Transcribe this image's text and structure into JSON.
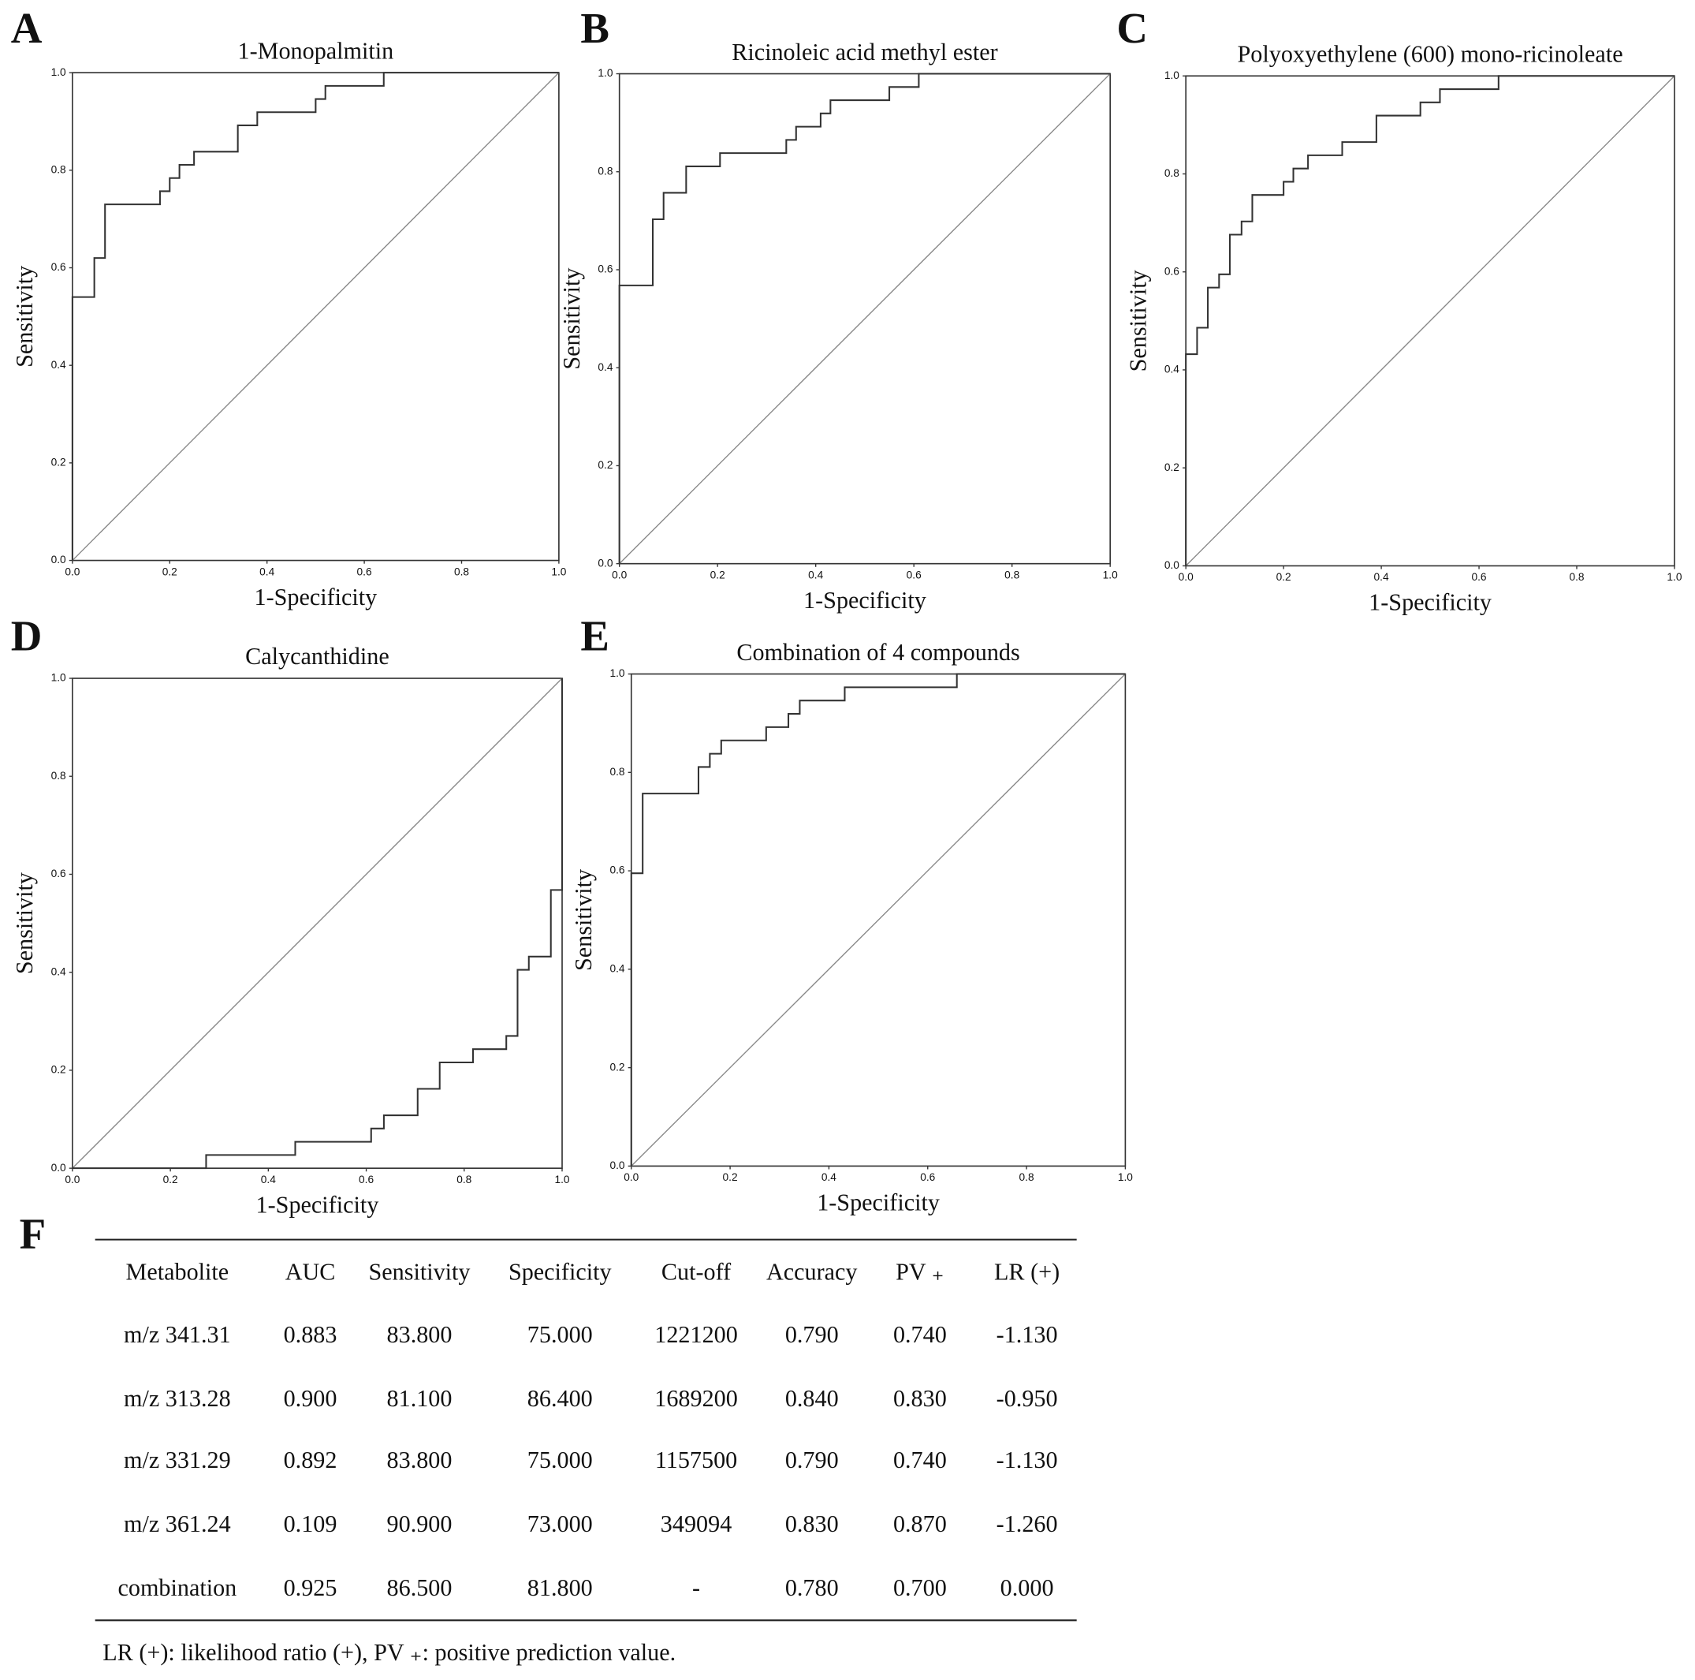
{
  "chart_data": [
    {
      "type": "line",
      "label": "A",
      "title": "1-Monopalmitin",
      "xlabel": "1-Specificity",
      "ylabel": "Sensitivity",
      "color": "#333333",
      "x": [
        0,
        0,
        0.045,
        0.045,
        0.067,
        0.067,
        0.18,
        0.18,
        0.2,
        0.2,
        0.22,
        0.22,
        0.25,
        0.25,
        0.34,
        0.34,
        0.38,
        0.38,
        0.5,
        0.5,
        0.52,
        0.52,
        0.64,
        0.64,
        1
      ],
      "values": [
        0,
        0.54,
        0.54,
        0.62,
        0.62,
        0.73,
        0.73,
        0.757,
        0.757,
        0.784,
        0.784,
        0.811,
        0.811,
        0.838,
        0.838,
        0.892,
        0.892,
        0.919,
        0.919,
        0.946,
        0.946,
        0.973,
        0.973,
        1,
        1
      ],
      "xlim": [
        0,
        1
      ],
      "ylim": [
        0,
        1
      ],
      "xticks": [
        {
          "value": 0,
          "label": "0.0"
        },
        {
          "value": 0.2,
          "label": "0.2"
        },
        {
          "value": 0.4,
          "label": "0.4"
        },
        {
          "value": 0.6,
          "label": "0.6"
        },
        {
          "value": 0.8,
          "label": "0.8"
        },
        {
          "value": 1,
          "label": "1.0"
        }
      ],
      "yticks": [
        {
          "value": 0,
          "label": "0.0"
        },
        {
          "value": 0.2,
          "label": "0.2"
        },
        {
          "value": 0.4,
          "label": "0.4"
        },
        {
          "value": 0.6,
          "label": "0.6"
        },
        {
          "value": 0.8,
          "label": "0.8"
        },
        {
          "value": 1,
          "label": "1.0"
        }
      ]
    },
    {
      "type": "line",
      "label": "B",
      "title": "Ricinoleic acid methyl ester",
      "xlabel": "1-Specificity",
      "ylabel": "Sensitivity",
      "color": "#333333",
      "x": [
        0,
        0,
        0.068,
        0.068,
        0.09,
        0.09,
        0.136,
        0.136,
        0.205,
        0.205,
        0.34,
        0.34,
        0.36,
        0.36,
        0.41,
        0.41,
        0.43,
        0.43,
        0.55,
        0.55,
        0.61,
        0.61,
        1
      ],
      "values": [
        0,
        0.568,
        0.568,
        0.703,
        0.703,
        0.757,
        0.757,
        0.811,
        0.811,
        0.838,
        0.838,
        0.865,
        0.865,
        0.892,
        0.892,
        0.919,
        0.919,
        0.946,
        0.946,
        0.973,
        0.973,
        1,
        1
      ],
      "xlim": [
        0,
        1
      ],
      "ylim": [
        0,
        1
      ],
      "xticks": [
        {
          "value": 0,
          "label": "0.0"
        },
        {
          "value": 0.2,
          "label": "0.2"
        },
        {
          "value": 0.4,
          "label": "0.4"
        },
        {
          "value": 0.6,
          "label": "0.6"
        },
        {
          "value": 0.8,
          "label": "0.8"
        },
        {
          "value": 1,
          "label": "1.0"
        }
      ],
      "yticks": [
        {
          "value": 0,
          "label": "0.0"
        },
        {
          "value": 0.2,
          "label": "0.2"
        },
        {
          "value": 0.4,
          "label": "0.4"
        },
        {
          "value": 0.6,
          "label": "0.6"
        },
        {
          "value": 0.8,
          "label": "0.8"
        },
        {
          "value": 1,
          "label": "1.0"
        }
      ]
    },
    {
      "type": "line",
      "label": "C",
      "title": "Polyoxyethylene (600) mono-ricinoleate",
      "xlabel": "1-Specificity",
      "ylabel": "Sensitivity",
      "color": "#333333",
      "x": [
        0,
        0,
        0.023,
        0.023,
        0.045,
        0.045,
        0.068,
        0.068,
        0.09,
        0.09,
        0.114,
        0.114,
        0.136,
        0.136,
        0.2,
        0.2,
        0.22,
        0.22,
        0.25,
        0.25,
        0.32,
        0.32,
        0.39,
        0.39,
        0.48,
        0.48,
        0.52,
        0.52,
        0.64,
        0.64,
        1
      ],
      "values": [
        0,
        0.432,
        0.432,
        0.486,
        0.486,
        0.568,
        0.568,
        0.595,
        0.595,
        0.676,
        0.676,
        0.703,
        0.703,
        0.757,
        0.757,
        0.784,
        0.784,
        0.811,
        0.811,
        0.838,
        0.838,
        0.865,
        0.865,
        0.919,
        0.919,
        0.946,
        0.946,
        0.973,
        0.973,
        1,
        1
      ],
      "xlim": [
        0,
        1
      ],
      "ylim": [
        0,
        1
      ],
      "xticks": [
        {
          "value": 0,
          "label": "0.0"
        },
        {
          "value": 0.2,
          "label": "0.2"
        },
        {
          "value": 0.4,
          "label": "0.4"
        },
        {
          "value": 0.6,
          "label": "0.6"
        },
        {
          "value": 0.8,
          "label": "0.8"
        },
        {
          "value": 1,
          "label": "1.0"
        }
      ],
      "yticks": [
        {
          "value": 0,
          "label": "0.0"
        },
        {
          "value": 0.2,
          "label": "0.2"
        },
        {
          "value": 0.4,
          "label": "0.4"
        },
        {
          "value": 0.6,
          "label": "0.6"
        },
        {
          "value": 0.8,
          "label": "0.8"
        },
        {
          "value": 1,
          "label": "1.0"
        }
      ]
    },
    {
      "type": "line",
      "label": "D",
      "title": "Calycanthidine",
      "xlabel": "1-Specificity",
      "ylabel": "Sensitivity",
      "color": "#333333",
      "x": [
        0,
        0.273,
        0.273,
        0.455,
        0.455,
        0.61,
        0.61,
        0.636,
        0.636,
        0.705,
        0.705,
        0.75,
        0.75,
        0.818,
        0.818,
        0.886,
        0.886,
        0.909,
        0.909,
        0.932,
        0.932,
        0.977,
        0.977,
        1,
        1
      ],
      "values": [
        0,
        0,
        0.027,
        0.027,
        0.054,
        0.054,
        0.081,
        0.081,
        0.108,
        0.108,
        0.162,
        0.162,
        0.216,
        0.216,
        0.243,
        0.243,
        0.27,
        0.27,
        0.405,
        0.405,
        0.432,
        0.432,
        0.568,
        0.568,
        1
      ],
      "xlim": [
        0,
        1
      ],
      "ylim": [
        0,
        1
      ],
      "xticks": [
        {
          "value": 0,
          "label": "0.0"
        },
        {
          "value": 0.2,
          "label": "0.2"
        },
        {
          "value": 0.4,
          "label": "0.4"
        },
        {
          "value": 0.6,
          "label": "0.6"
        },
        {
          "value": 0.8,
          "label": "0.8"
        },
        {
          "value": 1,
          "label": "1.0"
        }
      ],
      "yticks": [
        {
          "value": 0,
          "label": "0.0"
        },
        {
          "value": 0.2,
          "label": "0.2"
        },
        {
          "value": 0.4,
          "label": "0.4"
        },
        {
          "value": 0.6,
          "label": "0.6"
        },
        {
          "value": 0.8,
          "label": "0.8"
        },
        {
          "value": 1,
          "label": "1.0"
        }
      ]
    },
    {
      "type": "line",
      "label": "E",
      "title": "Combination of 4 compounds",
      "xlabel": "1-Specificity",
      "ylabel": "Sensitivity",
      "color": "#333333",
      "x": [
        0,
        0,
        0.023,
        0.023,
        0.136,
        0.136,
        0.159,
        0.159,
        0.182,
        0.182,
        0.273,
        0.273,
        0.318,
        0.318,
        0.341,
        0.341,
        0.432,
        0.432,
        0.659,
        0.659,
        1
      ],
      "values": [
        0,
        0.595,
        0.595,
        0.757,
        0.757,
        0.811,
        0.811,
        0.838,
        0.838,
        0.865,
        0.865,
        0.892,
        0.892,
        0.919,
        0.919,
        0.946,
        0.946,
        0.973,
        0.973,
        1,
        1
      ],
      "xlim": [
        0,
        1
      ],
      "ylim": [
        0,
        1
      ],
      "xticks": [
        {
          "value": 0,
          "label": "0.0"
        },
        {
          "value": 0.2,
          "label": "0.2"
        },
        {
          "value": 0.4,
          "label": "0.4"
        },
        {
          "value": 0.6,
          "label": "0.6"
        },
        {
          "value": 0.8,
          "label": "0.8"
        },
        {
          "value": 1,
          "label": "1.0"
        }
      ],
      "yticks": [
        {
          "value": 0,
          "label": "0.0"
        },
        {
          "value": 0.2,
          "label": "0.2"
        },
        {
          "value": 0.4,
          "label": "0.4"
        },
        {
          "value": 0.6,
          "label": "0.6"
        },
        {
          "value": 0.8,
          "label": "0.8"
        },
        {
          "value": 1,
          "label": "1.0"
        }
      ]
    }
  ],
  "table": {
    "label": "F",
    "header": [
      "Metabolite",
      "AUC",
      "Sensitivity",
      "Specificity",
      "Cut-off",
      "Accuracy",
      "PV ₊",
      "LR (+)"
    ],
    "rows": [
      [
        "m/z 341.31",
        "0.883",
        "83.800",
        "75.000",
        "1221200",
        "0.790",
        "0.740",
        "-1.130"
      ],
      [
        "m/z 313.28",
        "0.900",
        "81.100",
        "86.400",
        "1689200",
        "0.840",
        "0.830",
        "-0.950"
      ],
      [
        "m/z 331.29",
        "0.892",
        "83.800",
        "75.000",
        "1157500",
        "0.790",
        "0.740",
        "-1.130"
      ],
      [
        "m/z 361.24",
        "0.109",
        "90.900",
        "73.000",
        "349094",
        "0.830",
        "0.870",
        "-1.260"
      ],
      [
        "combination",
        "0.925",
        "86.500",
        "81.800",
        "-",
        "0.780",
        "0.700",
        "0.000"
      ]
    ],
    "footnote": "LR (+): likelihood ratio (+), PV ₊: positive prediction value."
  }
}
